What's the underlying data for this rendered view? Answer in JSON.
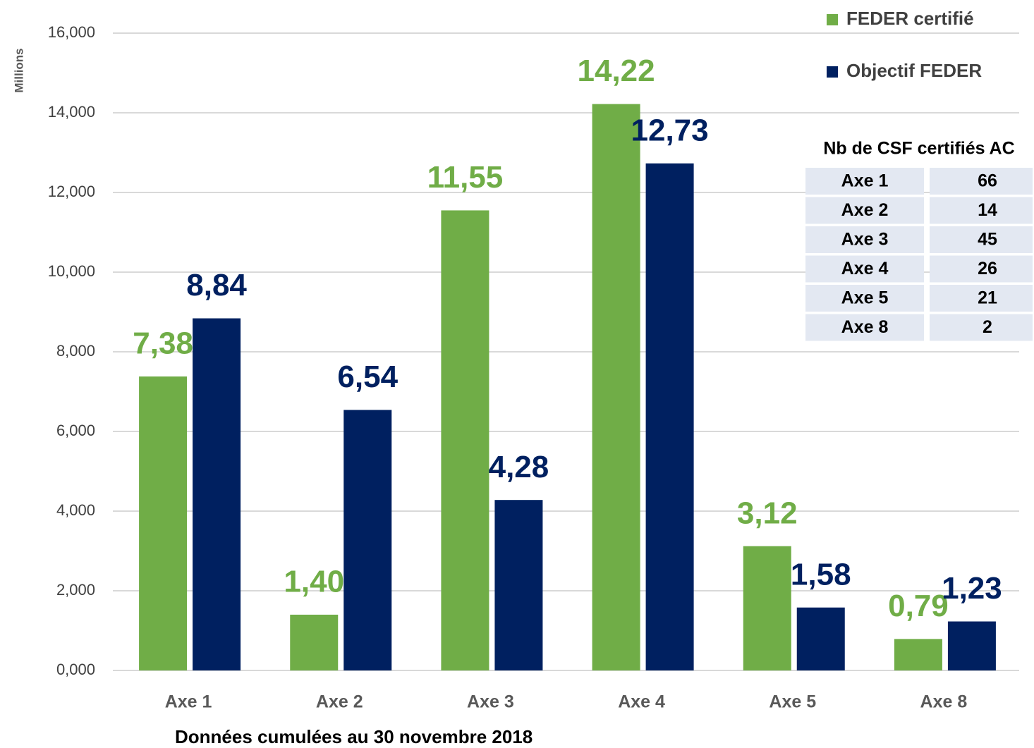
{
  "chart_data": {
    "type": "bar",
    "y_label": "Millions",
    "x_label": "Données cumulées au  30 novembre 2018",
    "categories": [
      "Axe 1",
      "Axe 2",
      "Axe 3",
      "Axe 4",
      "Axe 5",
      "Axe 8"
    ],
    "series": [
      {
        "name": "FEDER certifié",
        "color": "#70ad47",
        "values": [
          7.38,
          1.4,
          11.55,
          14.22,
          3.12,
          0.79
        ],
        "value_labels": [
          "7,38",
          "1,40",
          "11,55",
          "14,22",
          "3,12",
          "0,79"
        ]
      },
      {
        "name": "Objectif FEDER",
        "color": "#002060",
        "values": [
          8.84,
          6.54,
          4.28,
          12.73,
          1.58,
          1.23
        ],
        "value_labels": [
          "8,84",
          "6,54",
          "4,28",
          "12,73",
          "1,58",
          "1,23"
        ]
      }
    ],
    "ylim": [
      0,
      16
    ],
    "yticks": [
      {
        "value": 0,
        "label": "0,000"
      },
      {
        "value": 2,
        "label": "2,000"
      },
      {
        "value": 4,
        "label": "4,000"
      },
      {
        "value": 6,
        "label": "6,000"
      },
      {
        "value": 8,
        "label": "8,000"
      },
      {
        "value": 10,
        "label": "10,000"
      },
      {
        "value": 12,
        "label": "12,000"
      },
      {
        "value": 14,
        "label": "14,000"
      },
      {
        "value": 16,
        "label": "16,000"
      }
    ],
    "grid": true,
    "legend": "top-right",
    "table": {
      "title": "Nb de CSF certifiés AC",
      "rows": [
        [
          "Axe 1",
          66
        ],
        [
          "Axe 2",
          14
        ],
        [
          "Axe 3",
          45
        ],
        [
          "Axe 4",
          26
        ],
        [
          "Axe 5",
          21
        ],
        [
          "Axe 8",
          2
        ]
      ]
    }
  }
}
